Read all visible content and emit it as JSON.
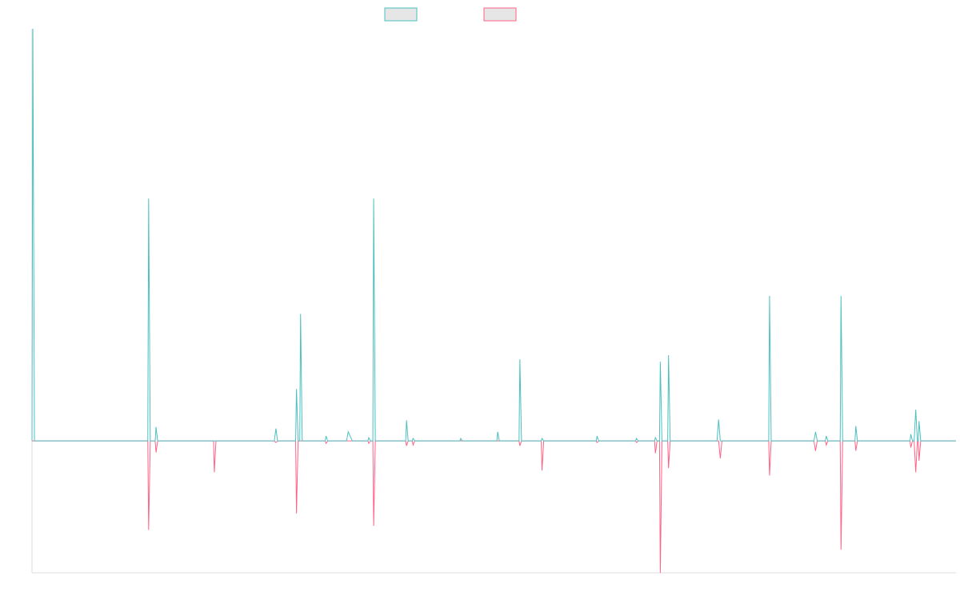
{
  "chart_data": {
    "type": "line",
    "title": "",
    "xlabel": "",
    "ylabel": "",
    "grid": false,
    "legend_position": "top-center",
    "xlim": [
      0,
      1125
    ],
    "ylim": [
      -16,
      50
    ],
    "colors": {
      "series_a": "#4bc0c0",
      "series_b": "#ff6384",
      "axis": "#dddddd",
      "legend_fill": "#e6e6e6"
    },
    "series": [
      {
        "key": "series_a",
        "color": "#4bc0c0",
        "points": [
          [
            0,
            0
          ],
          [
            1,
            50
          ],
          [
            3,
            0
          ],
          [
            141,
            0
          ],
          [
            142,
            29.4
          ],
          [
            144,
            0
          ],
          [
            150,
            0
          ],
          [
            151,
            1.7
          ],
          [
            153,
            0
          ],
          [
            295,
            0
          ],
          [
            297,
            1.5
          ],
          [
            299,
            0
          ],
          [
            321,
            0
          ],
          [
            322,
            6.3
          ],
          [
            324,
            0
          ],
          [
            326,
            0
          ],
          [
            327,
            15.4
          ],
          [
            329,
            0
          ],
          [
            357,
            0
          ],
          [
            358,
            0.6
          ],
          [
            360,
            0
          ],
          [
            383,
            0
          ],
          [
            385,
            1.1
          ],
          [
            390,
            0
          ],
          [
            409,
            0
          ],
          [
            410,
            0.4
          ],
          [
            412,
            0
          ],
          [
            415,
            0
          ],
          [
            416,
            29.4
          ],
          [
            418,
            0
          ],
          [
            455,
            0
          ],
          [
            456,
            2.5
          ],
          [
            458,
            0
          ],
          [
            463,
            0
          ],
          [
            464,
            0.3
          ],
          [
            466,
            0
          ],
          [
            521,
            0
          ],
          [
            522,
            0.3
          ],
          [
            524,
            0
          ],
          [
            566,
            0
          ],
          [
            567,
            1.1
          ],
          [
            569,
            0
          ],
          [
            593,
            0
          ],
          [
            594,
            9.9
          ],
          [
            596,
            0
          ],
          [
            620,
            0
          ],
          [
            621,
            0.3
          ],
          [
            623,
            0
          ],
          [
            687,
            0
          ],
          [
            688,
            0.6
          ],
          [
            690,
            0
          ],
          [
            735,
            0
          ],
          [
            736,
            0.3
          ],
          [
            738,
            0
          ],
          [
            758,
            0
          ],
          [
            759,
            0.4
          ],
          [
            761,
            0
          ],
          [
            764,
            0
          ],
          [
            765,
            9.6
          ],
          [
            767,
            0
          ],
          [
            774,
            0
          ],
          [
            775,
            10.4
          ],
          [
            777,
            0
          ],
          [
            834,
            0
          ],
          [
            836,
            2.6
          ],
          [
            838,
            0
          ],
          [
            897,
            0
          ],
          [
            898,
            17.6
          ],
          [
            900,
            0
          ],
          [
            952,
            0
          ],
          [
            954,
            1.1
          ],
          [
            956,
            0
          ],
          [
            958,
            0
          ],
          [
            966,
            0
          ],
          [
            967,
            0.6
          ],
          [
            969,
            0
          ],
          [
            984,
            0
          ],
          [
            985,
            17.6
          ],
          [
            987,
            0
          ],
          [
            1002,
            0
          ],
          [
            1003,
            1.8
          ],
          [
            1005,
            0
          ],
          [
            1069,
            0
          ],
          [
            1070,
            0.8
          ],
          [
            1072,
            0
          ],
          [
            1074,
            0
          ],
          [
            1076,
            3.8
          ],
          [
            1078,
            0
          ],
          [
            1079,
            0
          ],
          [
            1080,
            2.4
          ],
          [
            1082,
            0
          ],
          [
            1125,
            0
          ]
        ]
      },
      {
        "key": "series_b",
        "color": "#ff6384",
        "points": [
          [
            0,
            0
          ],
          [
            141,
            0
          ],
          [
            142,
            -10.8
          ],
          [
            144,
            0
          ],
          [
            150,
            0
          ],
          [
            151,
            -1.4
          ],
          [
            153,
            0
          ],
          [
            221,
            0
          ],
          [
            222,
            -3.8
          ],
          [
            224,
            0
          ],
          [
            295,
            0
          ],
          [
            297,
            -0.2
          ],
          [
            299,
            0
          ],
          [
            321,
            0
          ],
          [
            322,
            -8.8
          ],
          [
            324,
            0
          ],
          [
            357,
            0
          ],
          [
            358,
            -0.3
          ],
          [
            360,
            0
          ],
          [
            409,
            0
          ],
          [
            410,
            -0.3
          ],
          [
            412,
            0
          ],
          [
            415,
            0
          ],
          [
            416,
            -10.3
          ],
          [
            418,
            0
          ],
          [
            455,
            0
          ],
          [
            456,
            -0.6
          ],
          [
            458,
            0
          ],
          [
            463,
            0
          ],
          [
            464,
            -0.5
          ],
          [
            466,
            0
          ],
          [
            593,
            0
          ],
          [
            594,
            -0.6
          ],
          [
            596,
            0
          ],
          [
            620,
            0
          ],
          [
            621,
            -3.6
          ],
          [
            623,
            0
          ],
          [
            687,
            0
          ],
          [
            688,
            -0.2
          ],
          [
            690,
            0
          ],
          [
            735,
            0
          ],
          [
            736,
            -0.2
          ],
          [
            738,
            0
          ],
          [
            758,
            0
          ],
          [
            759,
            -1.5
          ],
          [
            761,
            0
          ],
          [
            764,
            0
          ],
          [
            765,
            -16
          ],
          [
            767,
            0
          ],
          [
            774,
            0
          ],
          [
            775,
            -3.3
          ],
          [
            777,
            0
          ],
          [
            836,
            0
          ],
          [
            838,
            -2.1
          ],
          [
            840,
            0
          ],
          [
            897,
            0
          ],
          [
            898,
            -4.2
          ],
          [
            900,
            0
          ],
          [
            952,
            0
          ],
          [
            954,
            -1.2
          ],
          [
            956,
            0
          ],
          [
            958,
            0
          ],
          [
            966,
            0
          ],
          [
            967,
            -0.5
          ],
          [
            969,
            0
          ],
          [
            984,
            0
          ],
          [
            985,
            -13.2
          ],
          [
            987,
            0
          ],
          [
            1002,
            0
          ],
          [
            1003,
            -1.2
          ],
          [
            1005,
            0
          ],
          [
            1069,
            0
          ],
          [
            1070,
            -0.8
          ],
          [
            1072,
            0
          ],
          [
            1074,
            0
          ],
          [
            1076,
            -3.8
          ],
          [
            1078,
            0
          ],
          [
            1079,
            0
          ],
          [
            1080,
            -2.4
          ],
          [
            1082,
            0
          ],
          [
            1125,
            0
          ]
        ]
      }
    ]
  }
}
